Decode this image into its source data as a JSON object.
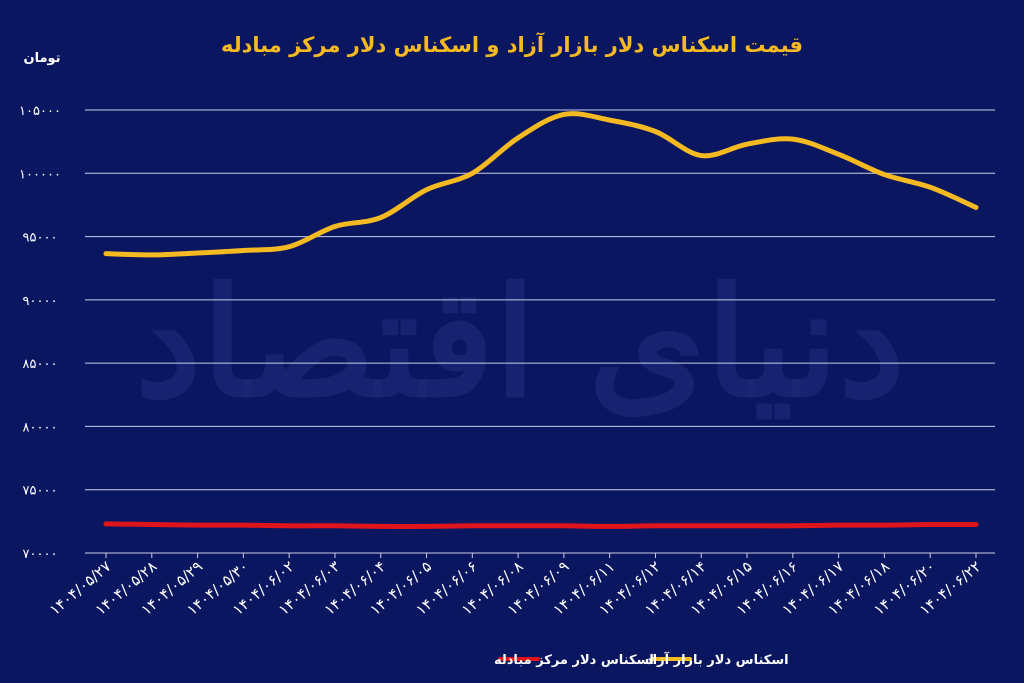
{
  "chart_data": {
    "type": "line",
    "title": "قیمت اسکناس دلار بازار آزاد و اسکناس دلار مرکز مبادله",
    "unit_label": "تومان",
    "watermark": "دنیای اقتصاد",
    "ylim": [
      70000,
      105000
    ],
    "yticks": [
      "۱۰۵۰۰۰",
      "۱۰۰۰۰۰",
      "۹۵۰۰۰",
      "۹۰۰۰۰",
      "۸۵۰۰۰",
      "۸۰۰۰۰",
      "۷۵۰۰۰",
      "۷۰۰۰۰"
    ],
    "grid": true,
    "legend_position": "bottom",
    "categories": [
      "۱۴۰۴/۰۵/۲۷",
      "۱۴۰۴/۰۵/۲۸",
      "۱۴۰۴/۰۵/۲۹",
      "۱۴۰۴/۰۵/۳۰",
      "۱۴۰۴/۰۶/۰۲",
      "۱۴۰۴/۰۶/۰۳",
      "۱۴۰۴/۰۶/۰۴",
      "۱۴۰۴/۰۶/۰۵",
      "۱۴۰۴/۰۶/۰۶",
      "۱۴۰۴/۰۶/۰۸",
      "۱۴۰۴/۰۶/۰۹",
      "۱۴۰۴/۰۶/۱۱",
      "۱۴۰۴/۰۶/۱۲",
      "۱۴۰۴/۰۶/۱۴",
      "۱۴۰۴/۰۶/۱۵",
      "۱۴۰۴/۰۶/۱۶",
      "۱۴۰۴/۰۶/۱۷",
      "۱۴۰۴/۰۶/۱۸",
      "۱۴۰۴/۰۶/۲۰",
      "۱۴۰۴/۰۶/۲۲"
    ],
    "series": [
      {
        "name": "اسکناس دلار بازار آزاد",
        "color": "#f5b921",
        "values": [
          93650,
          93550,
          93700,
          93900,
          94200,
          95800,
          96500,
          98700,
          100000,
          102800,
          104650,
          104200,
          103300,
          101400,
          102300,
          102700,
          101500,
          99900,
          98900,
          97300
        ]
      },
      {
        "name": "اسکناس دلار مرکز مبادله",
        "color": "#e0151c",
        "values": [
          72300,
          72250,
          72200,
          72200,
          72150,
          72150,
          72100,
          72100,
          72150,
          72150,
          72150,
          72100,
          72150,
          72150,
          72150,
          72150,
          72200,
          72200,
          72250,
          72250
        ]
      }
    ]
  }
}
